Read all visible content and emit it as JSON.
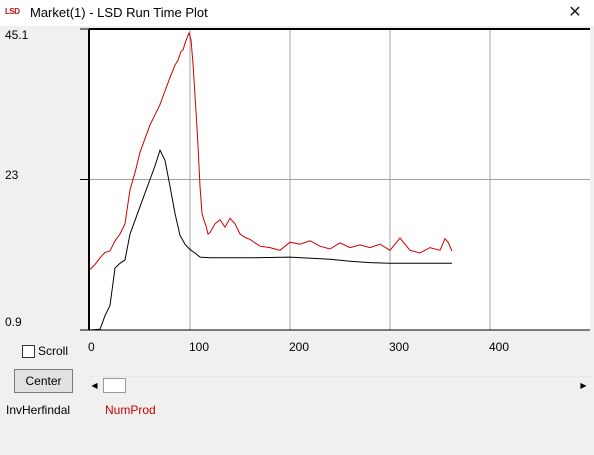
{
  "window": {
    "title": "Market(1) - LSD Run Time Plot",
    "icon_text": "LSD",
    "close_glyph": "✕"
  },
  "plot": {
    "y_labels": {
      "max": "45.1",
      "mid": "23",
      "min": "0.9"
    },
    "x_labels": [
      "0",
      "100",
      "200",
      "300",
      "400"
    ]
  },
  "controls": {
    "scroll_label": "Scroll",
    "scroll_checked": false,
    "center_label": "Center"
  },
  "legend": [
    {
      "name": "InvHerfindal",
      "color": "#000000"
    },
    {
      "name": "NumProd",
      "color": "#cc0000"
    }
  ],
  "colors": {
    "plot_bg": "#ffffff",
    "grid": "#a0a0a0",
    "series1": "#000000",
    "series2": "#cc0000"
  },
  "chart_data": {
    "type": "line",
    "xlim": [
      0,
      500
    ],
    "ylim": [
      0.9,
      45.1
    ],
    "grid": true,
    "series": [
      {
        "name": "InvHerfindal",
        "color": "#000000",
        "x": [
          0,
          10,
          15,
          20,
          25,
          30,
          35,
          40,
          45,
          50,
          55,
          60,
          65,
          70,
          75,
          80,
          85,
          90,
          95,
          100,
          105,
          110,
          120,
          140,
          160,
          200,
          240,
          260,
          280,
          300,
          330,
          362
        ],
        "y": [
          0.9,
          1.0,
          3.0,
          4.5,
          10.0,
          10.7,
          11.2,
          15.0,
          17.0,
          19.0,
          21.0,
          23.0,
          25.0,
          27.3,
          25.8,
          22.0,
          18.0,
          14.8,
          13.5,
          12.7,
          12.2,
          11.6,
          11.5,
          11.5,
          11.5,
          11.6,
          11.3,
          11.0,
          10.8,
          10.7,
          10.7,
          10.7
        ]
      },
      {
        "name": "NumProd",
        "color": "#cc0000",
        "x": [
          0,
          5,
          10,
          15,
          20,
          25,
          30,
          35,
          40,
          45,
          50,
          55,
          60,
          65,
          70,
          75,
          80,
          85,
          88,
          91,
          93,
          95,
          97,
          99,
          101,
          103,
          106,
          108,
          110,
          112,
          114,
          116,
          118,
          120,
          125,
          130,
          135,
          140,
          145,
          150,
          155,
          160,
          170,
          180,
          190,
          200,
          210,
          220,
          230,
          240,
          250,
          260,
          270,
          280,
          290,
          300,
          310,
          320,
          330,
          340,
          350,
          355,
          358,
          362
        ],
        "y": [
          9.8,
          10.5,
          11.5,
          12.3,
          12.5,
          14.0,
          15.0,
          16.5,
          21.5,
          24.0,
          27.0,
          29.0,
          31.0,
          32.5,
          34.0,
          36.0,
          38.0,
          39.8,
          40.5,
          41.8,
          42.0,
          43.0,
          43.8,
          44.5,
          43.5,
          40.0,
          33.0,
          28.0,
          22.0,
          18.0,
          17.0,
          16.2,
          15.0,
          15.2,
          16.5,
          17.1,
          16.0,
          17.3,
          16.5,
          15.0,
          14.5,
          14.2,
          13.2,
          13.0,
          12.6,
          13.8,
          13.5,
          14.0,
          13.2,
          12.8,
          13.7,
          13.0,
          13.4,
          13.0,
          13.5,
          12.6,
          14.4,
          12.6,
          12.2,
          13.0,
          12.6,
          14.3,
          13.8,
          12.5
        ]
      }
    ]
  }
}
